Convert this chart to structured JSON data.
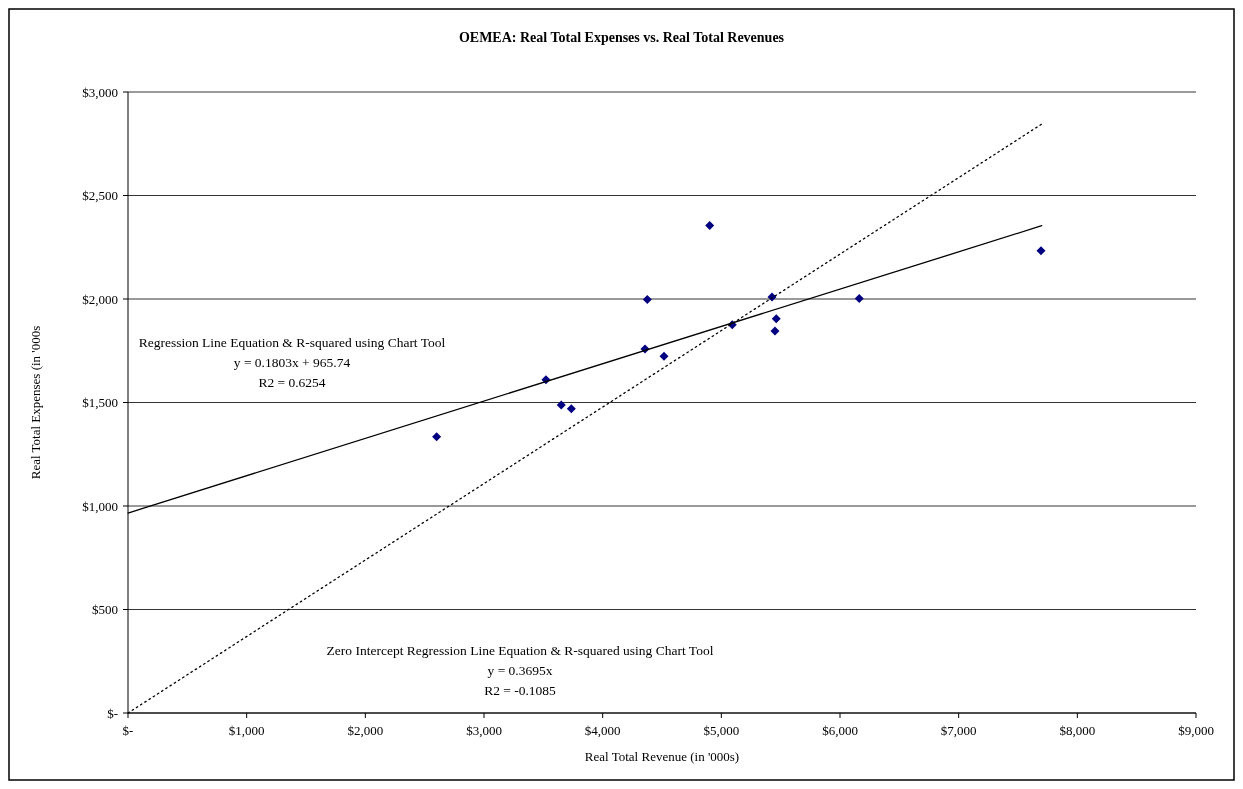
{
  "chart_data": {
    "type": "scatter",
    "title": "OEMEA: Real Total Expenses vs. Real Total Revenues",
    "xlabel": "Real Total Revenue (in '000s)",
    "ylabel": "Real Total Expenses (in '000s",
    "xlim": [
      0,
      9000
    ],
    "ylim": [
      0,
      3000
    ],
    "xticks": [
      {
        "value": 0,
        "label": "$-"
      },
      {
        "value": 1000,
        "label": "$1,000"
      },
      {
        "value": 2000,
        "label": "$2,000"
      },
      {
        "value": 3000,
        "label": "$3,000"
      },
      {
        "value": 4000,
        "label": "$4,000"
      },
      {
        "value": 5000,
        "label": "$5,000"
      },
      {
        "value": 6000,
        "label": "$6,000"
      },
      {
        "value": 7000,
        "label": "$7,000"
      },
      {
        "value": 8000,
        "label": "$8,000"
      },
      {
        "value": 9000,
        "label": "$9,000"
      }
    ],
    "yticks": [
      {
        "value": 0,
        "label": "$-"
      },
      {
        "value": 500,
        "label": "$500"
      },
      {
        "value": 1000,
        "label": "$1,000"
      },
      {
        "value": 1500,
        "label": "$1,500"
      },
      {
        "value": 2000,
        "label": "$2,000"
      },
      {
        "value": 2500,
        "label": "$2,500"
      },
      {
        "value": 3000,
        "label": "$3,000"
      }
    ],
    "grid": "y",
    "series": [
      {
        "type": "scatter",
        "color": "#000080",
        "marker": "diamond",
        "x": [
          2601,
          3522,
          3651,
          3736,
          4357,
          4376,
          4517,
          4902,
          5092,
          5427,
          5463,
          5452,
          6162,
          7694
        ],
        "values": [
          1335,
          1610,
          1488,
          1470,
          1759,
          1997,
          1723,
          2355,
          1876,
          2010,
          1904,
          1846,
          2003,
          2233
        ]
      },
      {
        "type": "line",
        "color": "#000000",
        "marker": "none",
        "line_style": "solid",
        "x": [
          0,
          7700
        ],
        "values": [
          966,
          2354
        ]
      },
      {
        "type": "line",
        "color": "#000000",
        "marker": "none",
        "line_style": "dotted",
        "x": [
          0,
          7700
        ],
        "values": [
          0,
          2845
        ]
      }
    ],
    "annotations": [
      "Regression Line Equation & R-squared using Chart Tool",
      "y = 0.1803x + 965.74",
      "R2 = 0.6254",
      "Zero Intercept Regression Line Equation & R-squared using Chart Tool",
      "y = 0.3695x",
      "R2 = -0.1085"
    ]
  }
}
